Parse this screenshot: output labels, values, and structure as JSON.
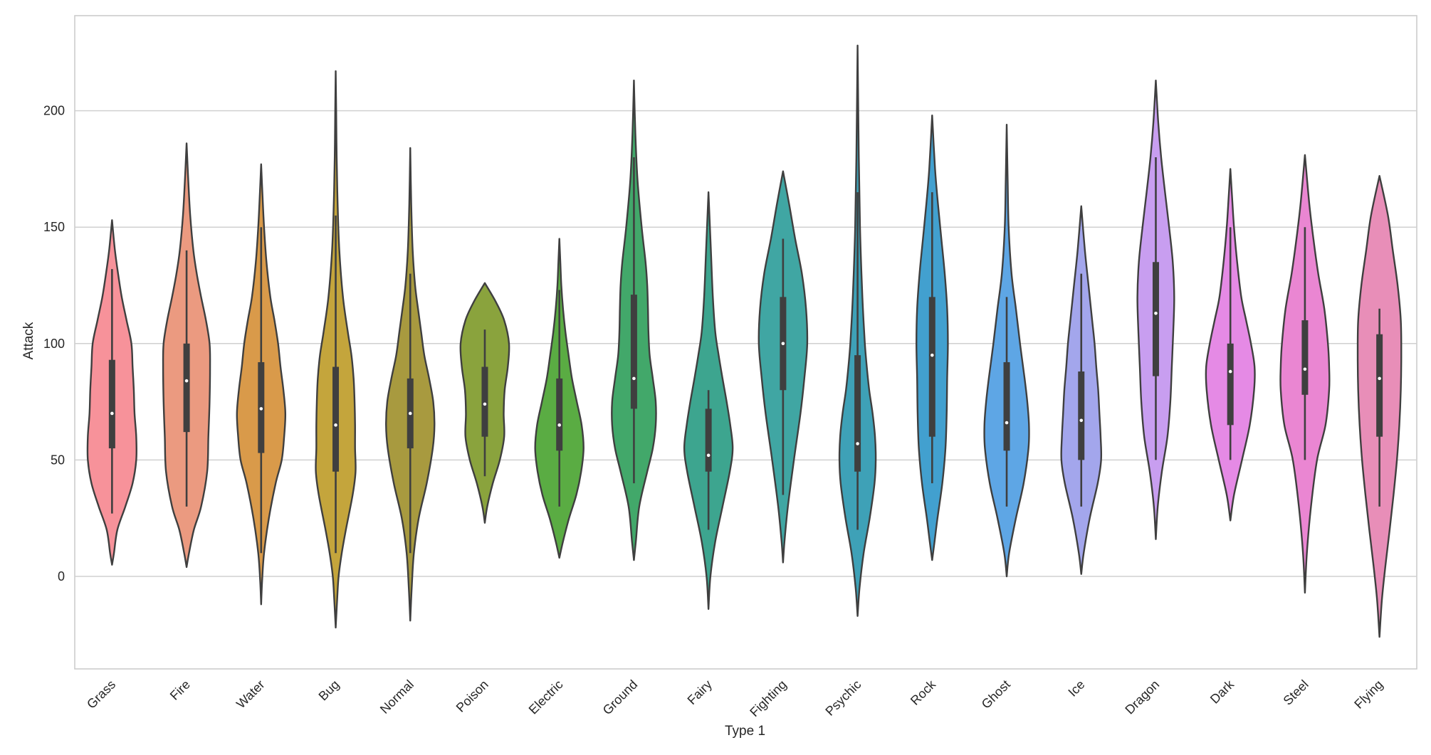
{
  "chart_data": {
    "type": "violin",
    "xlabel": "Type 1",
    "ylabel": "Attack",
    "ylim": [
      -40,
      240
    ],
    "yticks": [
      0,
      50,
      100,
      150,
      200
    ],
    "grid": "horizontal",
    "categories": [
      {
        "name": "Grass",
        "color": "#f7929a",
        "min": 27,
        "q1": 55,
        "median": 70,
        "q3": 93,
        "max": 132,
        "density": [
          [
            5,
            0
          ],
          [
            10,
            0.08
          ],
          [
            20,
            0.22
          ],
          [
            30,
            0.55
          ],
          [
            40,
            0.85
          ],
          [
            50,
            1.0
          ],
          [
            60,
            1.0
          ],
          [
            70,
            0.93
          ],
          [
            80,
            0.9
          ],
          [
            90,
            0.85
          ],
          [
            100,
            0.8
          ],
          [
            110,
            0.6
          ],
          [
            120,
            0.4
          ],
          [
            130,
            0.25
          ],
          [
            140,
            0.12
          ],
          [
            153,
            0
          ]
        ]
      },
      {
        "name": "Fire",
        "color": "#eb9a80",
        "min": 30,
        "q1": 62,
        "median": 84,
        "q3": 100,
        "max": 140,
        "density": [
          [
            4,
            0
          ],
          [
            10,
            0.1
          ],
          [
            20,
            0.3
          ],
          [
            30,
            0.6
          ],
          [
            45,
            0.85
          ],
          [
            60,
            0.9
          ],
          [
            75,
            0.95
          ],
          [
            90,
            0.97
          ],
          [
            100,
            0.95
          ],
          [
            110,
            0.8
          ],
          [
            120,
            0.6
          ],
          [
            130,
            0.42
          ],
          [
            140,
            0.28
          ],
          [
            155,
            0.15
          ],
          [
            170,
            0.07
          ],
          [
            186,
            0
          ]
        ]
      },
      {
        "name": "Water",
        "color": "#d99a4a",
        "min": 10,
        "q1": 53,
        "median": 72,
        "q3": 92,
        "max": 150,
        "density": [
          [
            -12,
            0
          ],
          [
            -2,
            0.04
          ],
          [
            10,
            0.12
          ],
          [
            25,
            0.32
          ],
          [
            40,
            0.6
          ],
          [
            50,
            0.85
          ],
          [
            60,
            0.95
          ],
          [
            70,
            1.0
          ],
          [
            80,
            0.92
          ],
          [
            90,
            0.8
          ],
          [
            100,
            0.7
          ],
          [
            110,
            0.55
          ],
          [
            120,
            0.38
          ],
          [
            135,
            0.22
          ],
          [
            150,
            0.12
          ],
          [
            165,
            0.05
          ],
          [
            177,
            0
          ]
        ]
      },
      {
        "name": "Bug",
        "color": "#c4a53c",
        "min": 10,
        "q1": 45,
        "median": 65,
        "q3": 90,
        "max": 155,
        "density": [
          [
            -22,
            0
          ],
          [
            -10,
            0.06
          ],
          [
            0,
            0.12
          ],
          [
            10,
            0.25
          ],
          [
            20,
            0.42
          ],
          [
            35,
            0.7
          ],
          [
            45,
            0.82
          ],
          [
            55,
            0.8
          ],
          [
            65,
            0.8
          ],
          [
            75,
            0.78
          ],
          [
            85,
            0.74
          ],
          [
            95,
            0.65
          ],
          [
            105,
            0.5
          ],
          [
            120,
            0.3
          ],
          [
            140,
            0.15
          ],
          [
            160,
            0.08
          ],
          [
            180,
            0.04
          ],
          [
            200,
            0.02
          ],
          [
            217,
            0
          ]
        ]
      },
      {
        "name": "Normal",
        "color": "#a89a3f",
        "min": 10,
        "q1": 55,
        "median": 70,
        "q3": 85,
        "max": 130,
        "density": [
          [
            -19,
            0
          ],
          [
            -5,
            0.06
          ],
          [
            10,
            0.15
          ],
          [
            25,
            0.35
          ],
          [
            40,
            0.68
          ],
          [
            55,
            0.93
          ],
          [
            65,
            1.0
          ],
          [
            75,
            0.95
          ],
          [
            85,
            0.78
          ],
          [
            95,
            0.58
          ],
          [
            105,
            0.45
          ],
          [
            115,
            0.32
          ],
          [
            125,
            0.2
          ],
          [
            140,
            0.1
          ],
          [
            160,
            0.04
          ],
          [
            184,
            0
          ]
        ]
      },
      {
        "name": "Poison",
        "color": "#8aa33d",
        "min": 43,
        "q1": 60,
        "median": 74,
        "q3": 90,
        "max": 106,
        "density": [
          [
            23,
            0
          ],
          [
            30,
            0.1
          ],
          [
            40,
            0.33
          ],
          [
            50,
            0.62
          ],
          [
            60,
            0.8
          ],
          [
            70,
            0.78
          ],
          [
            80,
            0.82
          ],
          [
            90,
            0.95
          ],
          [
            100,
            1.0
          ],
          [
            110,
            0.8
          ],
          [
            118,
            0.45
          ],
          [
            126,
            0
          ]
        ]
      },
      {
        "name": "Electric",
        "color": "#5aac43",
        "min": 30,
        "q1": 54,
        "median": 65,
        "q3": 85,
        "max": 123,
        "density": [
          [
            8,
            0
          ],
          [
            15,
            0.15
          ],
          [
            25,
            0.4
          ],
          [
            35,
            0.7
          ],
          [
            45,
            0.9
          ],
          [
            55,
            1.0
          ],
          [
            65,
            0.92
          ],
          [
            75,
            0.72
          ],
          [
            85,
            0.52
          ],
          [
            95,
            0.38
          ],
          [
            105,
            0.25
          ],
          [
            115,
            0.15
          ],
          [
            125,
            0.08
          ],
          [
            135,
            0.04
          ],
          [
            145,
            0
          ]
        ]
      },
      {
        "name": "Ground",
        "color": "#42a86a",
        "min": 40,
        "q1": 72,
        "median": 85,
        "q3": 121,
        "max": 180,
        "density": [
          [
            7,
            0
          ],
          [
            15,
            0.08
          ],
          [
            30,
            0.22
          ],
          [
            45,
            0.55
          ],
          [
            55,
            0.78
          ],
          [
            65,
            0.9
          ],
          [
            75,
            0.9
          ],
          [
            85,
            0.78
          ],
          [
            95,
            0.65
          ],
          [
            105,
            0.6
          ],
          [
            115,
            0.58
          ],
          [
            125,
            0.55
          ],
          [
            135,
            0.48
          ],
          [
            150,
            0.32
          ],
          [
            170,
            0.15
          ],
          [
            190,
            0.06
          ],
          [
            213,
            0
          ]
        ]
      },
      {
        "name": "Fairy",
        "color": "#3da58f",
        "min": 20,
        "q1": 45,
        "median": 52,
        "q3": 72,
        "max": 80,
        "density": [
          [
            -14,
            0
          ],
          [
            0,
            0.08
          ],
          [
            15,
            0.28
          ],
          [
            30,
            0.58
          ],
          [
            45,
            0.88
          ],
          [
            55,
            1.0
          ],
          [
            65,
            0.9
          ],
          [
            75,
            0.75
          ],
          [
            85,
            0.58
          ],
          [
            95,
            0.42
          ],
          [
            105,
            0.28
          ],
          [
            120,
            0.18
          ],
          [
            140,
            0.1
          ],
          [
            165,
            0
          ]
        ]
      },
      {
        "name": "Fighting",
        "color": "#40a6a3",
        "min": 35,
        "q1": 80,
        "median": 100,
        "q3": 120,
        "max": 145,
        "density": [
          [
            6,
            0
          ],
          [
            15,
            0.06
          ],
          [
            30,
            0.2
          ],
          [
            50,
            0.45
          ],
          [
            70,
            0.72
          ],
          [
            85,
            0.88
          ],
          [
            100,
            1.0
          ],
          [
            115,
            0.95
          ],
          [
            130,
            0.78
          ],
          [
            145,
            0.5
          ],
          [
            160,
            0.25
          ],
          [
            174,
            0
          ]
        ]
      },
      {
        "name": "Psychic",
        "color": "#3ea1b7",
        "min": 20,
        "q1": 45,
        "median": 57,
        "q3": 95,
        "max": 165,
        "density": [
          [
            -17,
            0
          ],
          [
            -5,
            0.08
          ],
          [
            10,
            0.25
          ],
          [
            25,
            0.5
          ],
          [
            40,
            0.7
          ],
          [
            50,
            0.75
          ],
          [
            60,
            0.72
          ],
          [
            70,
            0.62
          ],
          [
            80,
            0.48
          ],
          [
            90,
            0.38
          ],
          [
            100,
            0.3
          ],
          [
            115,
            0.22
          ],
          [
            130,
            0.16
          ],
          [
            150,
            0.1
          ],
          [
            180,
            0.05
          ],
          [
            228,
            0
          ]
        ]
      },
      {
        "name": "Rock",
        "color": "#42a0cf",
        "min": 40,
        "q1": 60,
        "median": 95,
        "q3": 120,
        "max": 165,
        "density": [
          [
            7,
            0
          ],
          [
            15,
            0.1
          ],
          [
            25,
            0.22
          ],
          [
            40,
            0.42
          ],
          [
            55,
            0.55
          ],
          [
            70,
            0.6
          ],
          [
            85,
            0.62
          ],
          [
            100,
            0.65
          ],
          [
            115,
            0.62
          ],
          [
            130,
            0.52
          ],
          [
            145,
            0.38
          ],
          [
            160,
            0.24
          ],
          [
            175,
            0.12
          ],
          [
            198,
            0
          ]
        ]
      },
      {
        "name": "Ghost",
        "color": "#5ea6e5",
        "min": 30,
        "q1": 54,
        "median": 66,
        "q3": 92,
        "max": 120,
        "density": [
          [
            0,
            0
          ],
          [
            10,
            0.1
          ],
          [
            25,
            0.38
          ],
          [
            40,
            0.7
          ],
          [
            55,
            0.9
          ],
          [
            65,
            0.92
          ],
          [
            75,
            0.85
          ],
          [
            85,
            0.74
          ],
          [
            100,
            0.55
          ],
          [
            115,
            0.38
          ],
          [
            130,
            0.2
          ],
          [
            150,
            0.08
          ],
          [
            170,
            0.04
          ],
          [
            194,
            0
          ]
        ]
      },
      {
        "name": "Ice",
        "color": "#a3a6ec",
        "min": 30,
        "q1": 50,
        "median": 67,
        "q3": 88,
        "max": 130,
        "density": [
          [
            1,
            0
          ],
          [
            10,
            0.1
          ],
          [
            25,
            0.35
          ],
          [
            40,
            0.68
          ],
          [
            50,
            0.82
          ],
          [
            60,
            0.8
          ],
          [
            70,
            0.75
          ],
          [
            80,
            0.7
          ],
          [
            90,
            0.62
          ],
          [
            100,
            0.55
          ],
          [
            110,
            0.45
          ],
          [
            125,
            0.3
          ],
          [
            140,
            0.15
          ],
          [
            159,
            0
          ]
        ]
      },
      {
        "name": "Dragon",
        "color": "#c89ef0",
        "min": 50,
        "q1": 86,
        "median": 113,
        "q3": 135,
        "max": 180,
        "density": [
          [
            16,
            0
          ],
          [
            30,
            0.08
          ],
          [
            45,
            0.25
          ],
          [
            60,
            0.48
          ],
          [
            75,
            0.6
          ],
          [
            90,
            0.66
          ],
          [
            105,
            0.72
          ],
          [
            120,
            0.76
          ],
          [
            135,
            0.7
          ],
          [
            150,
            0.55
          ],
          [
            165,
            0.38
          ],
          [
            180,
            0.22
          ],
          [
            195,
            0.1
          ],
          [
            213,
            0
          ]
        ]
      },
      {
        "name": "Dark",
        "color": "#e58ae5",
        "min": 50,
        "q1": 65,
        "median": 88,
        "q3": 100,
        "max": 150,
        "density": [
          [
            24,
            0
          ],
          [
            35,
            0.15
          ],
          [
            50,
            0.48
          ],
          [
            65,
            0.8
          ],
          [
            80,
            0.98
          ],
          [
            90,
            1.0
          ],
          [
            100,
            0.85
          ],
          [
            110,
            0.65
          ],
          [
            120,
            0.45
          ],
          [
            135,
            0.28
          ],
          [
            150,
            0.15
          ],
          [
            163,
            0.07
          ],
          [
            175,
            0
          ]
        ]
      },
      {
        "name": "Steel",
        "color": "#ea86d2",
        "min": 50,
        "q1": 78,
        "median": 89,
        "q3": 110,
        "max": 150,
        "density": [
          [
            -7,
            0
          ],
          [
            10,
            0.08
          ],
          [
            30,
            0.25
          ],
          [
            50,
            0.5
          ],
          [
            65,
            0.85
          ],
          [
            80,
            1.0
          ],
          [
            90,
            1.0
          ],
          [
            100,
            0.95
          ],
          [
            115,
            0.8
          ],
          [
            130,
            0.55
          ],
          [
            145,
            0.35
          ],
          [
            160,
            0.18
          ],
          [
            181,
            0
          ]
        ]
      },
      {
        "name": "Flying",
        "color": "#e88eb8",
        "min": 30,
        "q1": 60,
        "median": 85,
        "q3": 104,
        "max": 115,
        "density": [
          [
            -26,
            0
          ],
          [
            -10,
            0.1
          ],
          [
            5,
            0.25
          ],
          [
            20,
            0.42
          ],
          [
            35,
            0.58
          ],
          [
            50,
            0.72
          ],
          [
            65,
            0.82
          ],
          [
            80,
            0.88
          ],
          [
            95,
            0.9
          ],
          [
            110,
            0.88
          ],
          [
            125,
            0.75
          ],
          [
            140,
            0.55
          ],
          [
            155,
            0.35
          ],
          [
            172,
            0
          ]
        ]
      }
    ]
  }
}
